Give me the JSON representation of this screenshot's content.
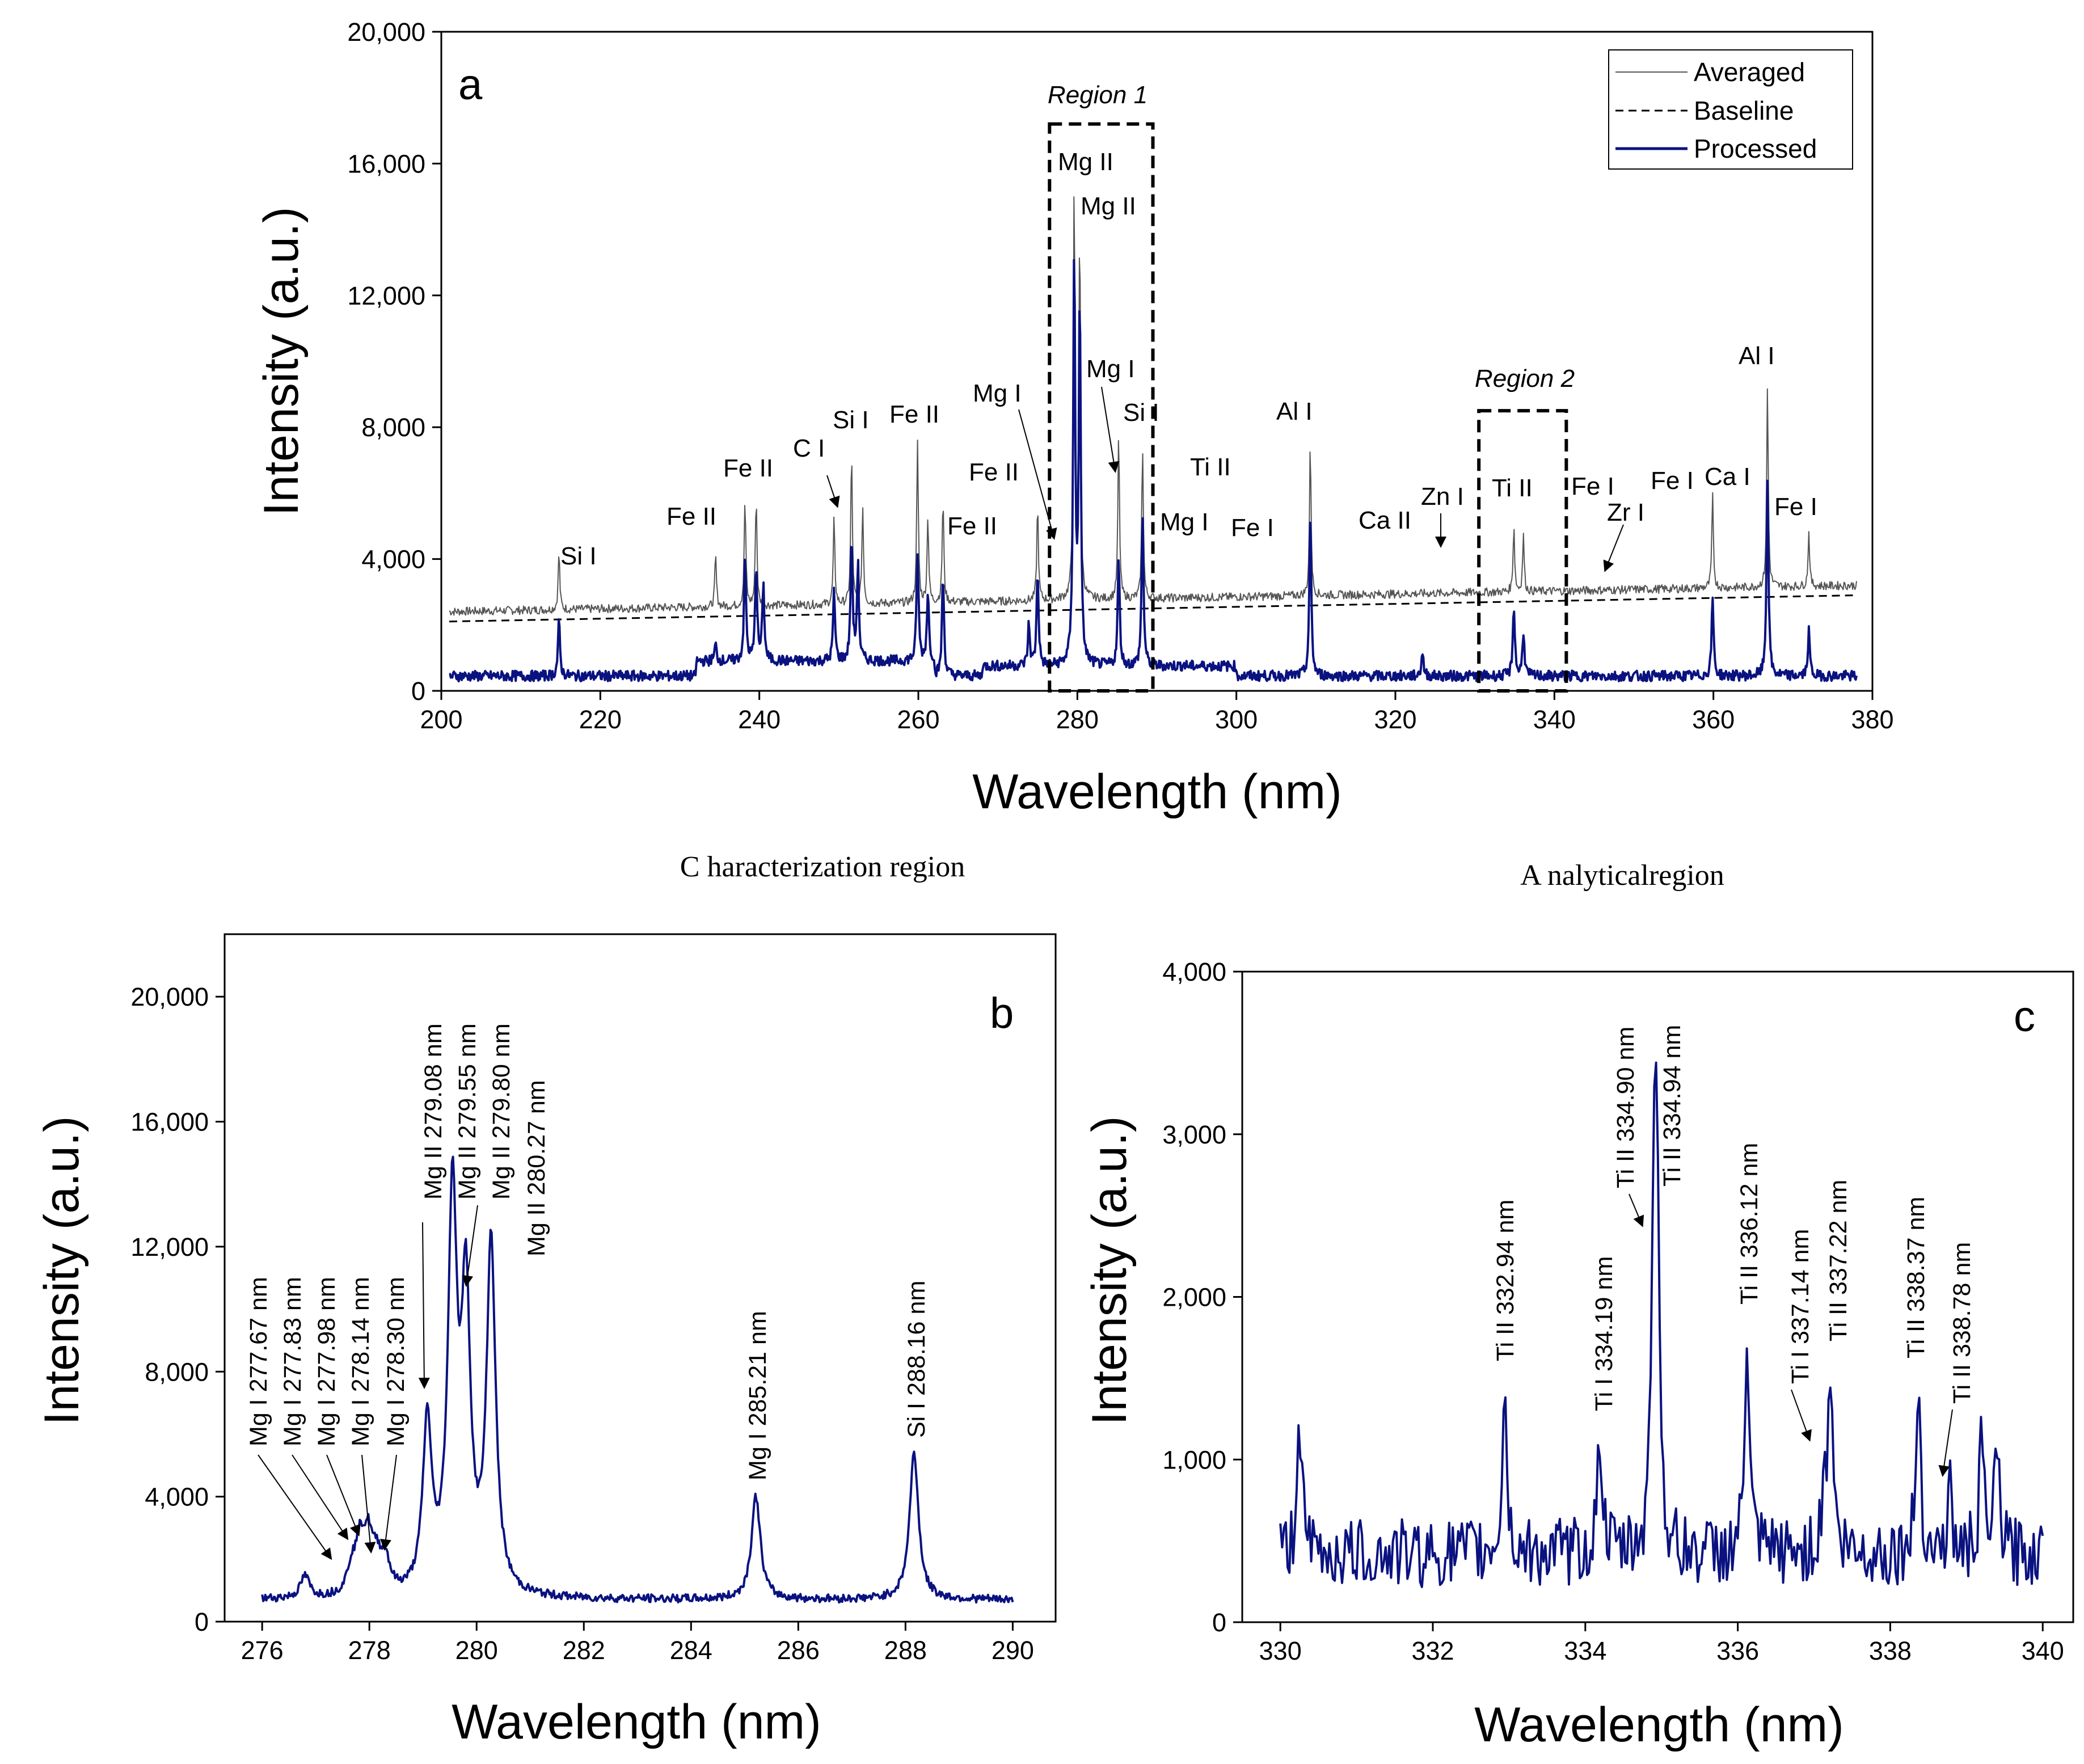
{
  "subtitles": {
    "characterization": "C haracterization region",
    "analytical": "A nalyticalregion"
  },
  "colors": {
    "processed": "#0a1280",
    "averaged": "#555555",
    "baseline": "#000000"
  },
  "chart_data": [
    {
      "panel": "a",
      "type": "line",
      "xlabel": "Wavelength (nm)",
      "ylabel": "Intensity (a.u.)",
      "xlim": [
        200,
        380
      ],
      "ylim": [
        0,
        20000
      ],
      "xticks": [
        200,
        220,
        240,
        260,
        280,
        300,
        320,
        340,
        360,
        380
      ],
      "yticks": [
        0,
        4000,
        8000,
        12000,
        16000,
        20000
      ],
      "ytick_labels": [
        "0",
        "4,000",
        "8,000",
        "12,000",
        "16,000",
        "20,000"
      ],
      "legend_position": "top-right",
      "legend": [
        "Averaged",
        "Baseline",
        "Processed"
      ],
      "series": [
        {
          "name": "Averaged",
          "style": "thin grey",
          "baseline_start": 2100,
          "baseline_end": 2900,
          "peaks": [
            [
              214.8,
              4200
            ],
            [
              234.5,
              4100
            ],
            [
              238.2,
              5800
            ],
            [
              239.6,
              5900
            ],
            [
              249.4,
              5200
            ],
            [
              251.6,
              7200
            ],
            [
              253.0,
              5600
            ],
            [
              259.9,
              7500
            ],
            [
              261.2,
              5300
            ],
            [
              263.1,
              5800
            ],
            [
              275.0,
              5600
            ],
            [
              279.6,
              15400
            ],
            [
              280.3,
              14100
            ],
            [
              285.2,
              7800
            ],
            [
              288.2,
              7400
            ],
            [
              309.3,
              7500
            ],
            [
              334.9,
              5000
            ],
            [
              336.1,
              4700
            ],
            [
              359.9,
              5900
            ],
            [
              366.8,
              9200
            ],
            [
              372.0,
              4800
            ]
          ]
        },
        {
          "name": "Baseline",
          "style": "dashed",
          "start": 2100,
          "end": 2900
        },
        {
          "name": "Processed",
          "style": "navy",
          "peaks": [
            [
              214.8,
              2100
            ],
            [
              234.5,
              1400
            ],
            [
              238.2,
              4000
            ],
            [
              239.6,
              3800
            ],
            [
              240.5,
              3200
            ],
            [
              249.4,
              3000
            ],
            [
              251.6,
              4600
            ],
            [
              252.4,
              3800
            ],
            [
              259.9,
              4200
            ],
            [
              261.2,
              3000
            ],
            [
              263.1,
              3500
            ],
            [
              273.9,
              2000
            ],
            [
              275.0,
              3600
            ],
            [
              279.6,
              13200
            ],
            [
              280.3,
              11800
            ],
            [
              285.2,
              4000
            ],
            [
              288.2,
              5300
            ],
            [
              293.4,
              800
            ],
            [
              309.3,
              5200
            ],
            [
              323.4,
              1200
            ],
            [
              334.9,
              2600
            ],
            [
              336.1,
              1800
            ],
            [
              359.9,
              2800
            ],
            [
              366.8,
              6400
            ],
            [
              372.0,
              1800
            ]
          ]
        }
      ],
      "annotations": [
        "Si I",
        "Fe II",
        "Fe II",
        "C I",
        "Si I",
        "Fe II",
        "Fe II",
        "Fe II",
        "Mg I",
        "Mg II",
        "Mg II",
        "Mg I",
        "Si I",
        "Ti II",
        "Mg I",
        "Fe I",
        "Al I",
        "Ca II",
        "Zn I",
        "Ti II",
        "Fe I",
        "Zr I",
        "Fe I",
        "Ca I",
        "Al I",
        "Fe I"
      ],
      "regions": [
        {
          "label": "Region 1",
          "x": [
            276.5,
            289.5
          ]
        },
        {
          "label": "Region 2",
          "x": [
            330.5,
            341.5
          ]
        }
      ]
    },
    {
      "panel": "b",
      "type": "line",
      "xlabel": "Wavelength (nm)",
      "ylabel": "Intensity (a.u.)",
      "xlim": [
        275.3,
        290.8
      ],
      "ylim": [
        0,
        22000
      ],
      "xticks": [
        276,
        278,
        280,
        282,
        284,
        286,
        288,
        290
      ],
      "yticks": [
        0,
        4000,
        8000,
        12000,
        16000,
        20000
      ],
      "ytick_labels": [
        "0",
        "4,000",
        "8,000",
        "12,000",
        "16,000",
        "20,000"
      ],
      "series": [
        {
          "name": "Processed",
          "peaks": [
            [
              276.8,
              1400
            ],
            [
              277.67,
              1500
            ],
            [
              277.83,
              2200
            ],
            [
              277.98,
              2300
            ],
            [
              278.14,
              1600
            ],
            [
              278.3,
              1700
            ],
            [
              279.08,
              6100
            ],
            [
              279.55,
              13200
            ],
            [
              279.8,
              9800
            ],
            [
              280.27,
              11900
            ],
            [
              285.21,
              4000
            ],
            [
              288.16,
              5400
            ]
          ]
        }
      ],
      "annotations": [
        "Mg I 277.67 nm",
        "Mg I 277.83 nm",
        "Mg I 277.98 nm",
        "Mg I 278.14 nm",
        "Mg I 278.30 nm",
        "Mg II 279.08 nm",
        "Mg II 279.55 nm",
        "Mg II 279.80 nm",
        "Mg II 280.27 nm",
        "Mg I 285.21 nm",
        "Si I 288.16 nm"
      ]
    },
    {
      "panel": "c",
      "type": "line",
      "xlabel": "Wavelength (nm)",
      "ylabel": "Intensity (a.u.)",
      "xlim": [
        329.5,
        340.4
      ],
      "ylim": [
        0,
        4000
      ],
      "xticks": [
        330,
        332,
        334,
        336,
        338,
        340
      ],
      "yticks": [
        0,
        1000,
        2000,
        3000,
        4000
      ],
      "ytick_labels": [
        "0",
        "1,000",
        "2,000",
        "3,000",
        "4,000"
      ],
      "series": [
        {
          "name": "Processed",
          "peaks": [
            [
              330.25,
              1300
            ],
            [
              332.94,
              1450
            ],
            [
              334.19,
              1200
            ],
            [
              334.9,
              2350
            ],
            [
              334.94,
              2600
            ],
            [
              336.12,
              1780
            ],
            [
              337.14,
              900
            ],
            [
              337.22,
              1500
            ],
            [
              338.37,
              1490
            ],
            [
              338.78,
              800
            ],
            [
              339.2,
              1100
            ],
            [
              339.4,
              1100
            ]
          ]
        }
      ],
      "annotations": [
        "Ti II 332.94 nm",
        "Ti I 334.19 nm",
        "Ti II 334.90 nm",
        "Ti II 334.94 nm",
        "Ti II 336.12 nm",
        "Ti I 337.14 nm",
        "Ti II 337.22 nm",
        "Ti II 338.37 nm",
        "Ti II 338.78 nm"
      ]
    }
  ]
}
